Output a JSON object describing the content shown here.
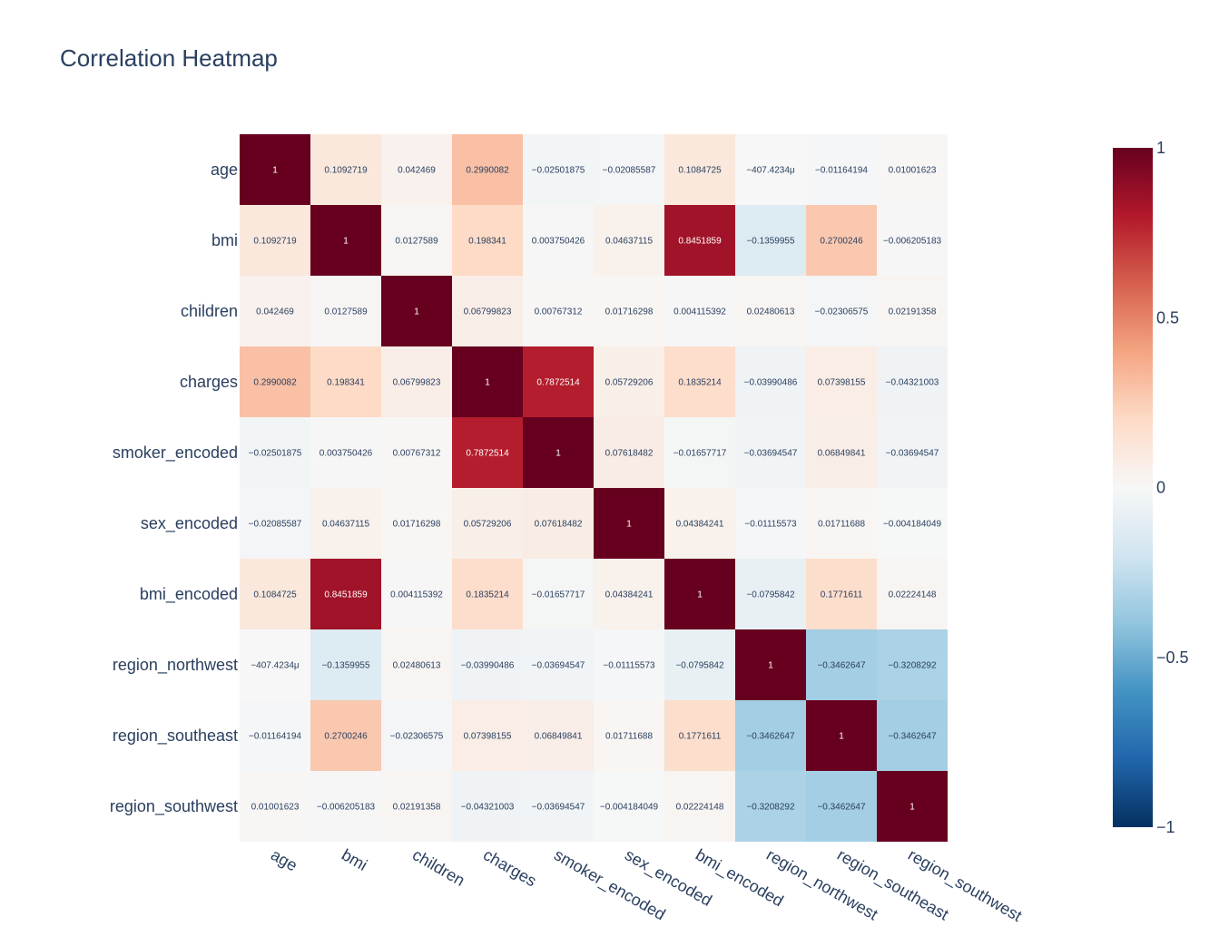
{
  "chart_data": {
    "type": "heatmap",
    "title": "Correlation Heatmap",
    "x_categories": [
      "age",
      "bmi",
      "children",
      "charges",
      "smoker_encoded",
      "sex_encoded",
      "bmi_encoded",
      "region_northwest",
      "region_southeast",
      "region_southwest"
    ],
    "y_categories": [
      "age",
      "bmi",
      "children",
      "charges",
      "smoker_encoded",
      "sex_encoded",
      "bmi_encoded",
      "region_northwest",
      "region_southeast",
      "region_southwest"
    ],
    "values": [
      [
        1,
        0.1092719,
        0.042469,
        0.2990082,
        -0.02501875,
        -0.02085587,
        0.1084725,
        -0.0004074234,
        -0.01164194,
        0.01001623
      ],
      [
        0.1092719,
        1,
        0.0127589,
        0.198341,
        0.003750426,
        0.04637115,
        0.8451859,
        -0.1359955,
        0.2700246,
        -0.006205183
      ],
      [
        0.042469,
        0.0127589,
        1,
        0.06799823,
        0.00767312,
        0.01716298,
        0.004115392,
        0.02480613,
        -0.02306575,
        0.02191358
      ],
      [
        0.2990082,
        0.198341,
        0.06799823,
        1,
        0.7872514,
        0.05729206,
        0.1835214,
        -0.03990486,
        0.07398155,
        -0.04321003
      ],
      [
        -0.02501875,
        0.003750426,
        0.00767312,
        0.7872514,
        1,
        0.07618482,
        -0.01657717,
        -0.03694547,
        0.06849841,
        -0.03694547
      ],
      [
        -0.02085587,
        0.04637115,
        0.01716298,
        0.05729206,
        0.07618482,
        1,
        0.04384241,
        -0.01115573,
        0.01711688,
        -0.004184049
      ],
      [
        0.1084725,
        0.8451859,
        0.004115392,
        0.1835214,
        -0.01657717,
        0.04384241,
        1,
        -0.0795842,
        0.1771611,
        0.02224148
      ],
      [
        -0.0004074234,
        -0.1359955,
        0.02480613,
        -0.03990486,
        -0.03694547,
        -0.01115573,
        -0.0795842,
        1,
        -0.3462647,
        -0.3208292
      ],
      [
        -0.01164194,
        0.2700246,
        -0.02306575,
        0.07398155,
        0.06849841,
        0.01711688,
        0.1771611,
        -0.3462647,
        1,
        -0.3462647
      ],
      [
        0.01001623,
        -0.006205183,
        0.02191358,
        -0.04321003,
        -0.03694547,
        -0.004184049,
        0.02224148,
        -0.3208292,
        -0.3462647,
        1
      ]
    ],
    "text": [
      [
        "1",
        "0.1092719",
        "0.042469",
        "0.2990082",
        "−0.02501875",
        "−0.02085587",
        "0.1084725",
        "−407.4234μ",
        "−0.01164194",
        "0.01001623"
      ],
      [
        "0.1092719",
        "1",
        "0.0127589",
        "0.198341",
        "0.003750426",
        "0.04637115",
        "0.8451859",
        "−0.1359955",
        "0.2700246",
        "−0.006205183"
      ],
      [
        "0.042469",
        "0.0127589",
        "1",
        "0.06799823",
        "0.00767312",
        "0.01716298",
        "0.004115392",
        "0.02480613",
        "−0.02306575",
        "0.02191358"
      ],
      [
        "0.2990082",
        "0.198341",
        "0.06799823",
        "1",
        "0.7872514",
        "0.05729206",
        "0.1835214",
        "−0.03990486",
        "0.07398155",
        "−0.04321003"
      ],
      [
        "−0.02501875",
        "0.003750426",
        "0.00767312",
        "0.7872514",
        "1",
        "0.07618482",
        "−0.01657717",
        "−0.03694547",
        "0.06849841",
        "−0.03694547"
      ],
      [
        "−0.02085587",
        "0.04637115",
        "0.01716298",
        "0.05729206",
        "0.07618482",
        "1",
        "0.04384241",
        "−0.01115573",
        "0.01711688",
        "−0.004184049"
      ],
      [
        "0.1084725",
        "0.8451859",
        "0.004115392",
        "0.1835214",
        "−0.01657717",
        "0.04384241",
        "1",
        "−0.0795842",
        "0.1771611",
        "0.02224148"
      ],
      [
        "−407.4234μ",
        "−0.1359955",
        "0.02480613",
        "−0.03990486",
        "−0.03694547",
        "−0.01115573",
        "−0.0795842",
        "1",
        "−0.3462647",
        "−0.3208292"
      ],
      [
        "−0.01164194",
        "0.2700246",
        "−0.02306575",
        "0.07398155",
        "0.06849841",
        "0.01711688",
        "0.1771611",
        "−0.3462647",
        "1",
        "−0.3462647"
      ],
      [
        "0.01001623",
        "−0.006205183",
        "0.02191358",
        "−0.04321003",
        "−0.03694547",
        "−0.004184049",
        "0.02224148",
        "−0.3208292",
        "−0.3462647",
        "1"
      ]
    ],
    "zmin": -1,
    "zmax": 1,
    "colorscale": "RdBu",
    "colorscale_stops": [
      [
        0,
        "#053061"
      ],
      [
        0.1,
        "#2166ac"
      ],
      [
        0.2,
        "#4393c3"
      ],
      [
        0.3,
        "#92c5de"
      ],
      [
        0.4,
        "#d1e5f0"
      ],
      [
        0.5,
        "#f7f7f7"
      ],
      [
        0.6,
        "#fddbc7"
      ],
      [
        0.7,
        "#f4a582"
      ],
      [
        0.8,
        "#d6604d"
      ],
      [
        0.9,
        "#b2182b"
      ],
      [
        1,
        "#67001f"
      ]
    ],
    "colorbar": {
      "ticks": [
        1,
        0.5,
        0,
        -0.5,
        -1
      ],
      "tick_labels": [
        "1",
        "0.5",
        "0",
        "−0.5",
        "−1"
      ]
    },
    "legend": "colorbar-right"
  }
}
